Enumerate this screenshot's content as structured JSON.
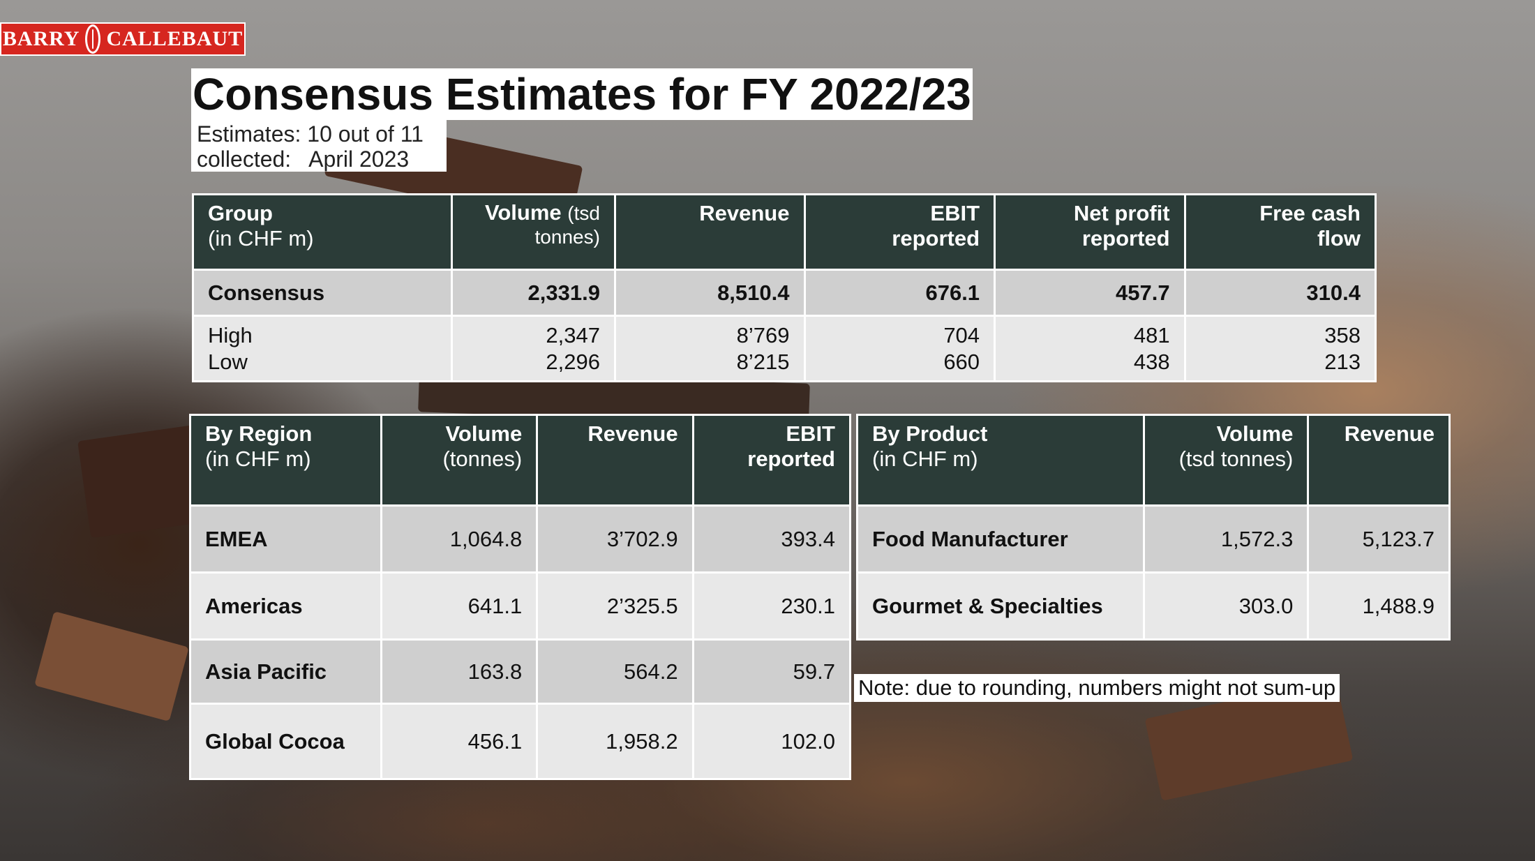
{
  "logo": {
    "left_text": "BARRY",
    "right_text": "CALLEBAUT",
    "color": "#d6261f"
  },
  "title": "Consensus Estimates for FY 2022/23",
  "subtitle": {
    "line1": "Estimates: 10 out of 11",
    "line2": "collected:   April 2023"
  },
  "group_table": {
    "headers": {
      "group": "Group",
      "group_sub": "(in CHF m)",
      "volume": "Volume",
      "volume_sub1": "(tsd",
      "volume_sub2": "tonnes)",
      "revenue": "Revenue",
      "ebit1": "EBIT",
      "ebit2": "reported",
      "net1": "Net profit",
      "net2": "reported",
      "fcf1": "Free cash",
      "fcf2": "flow"
    },
    "consensus": {
      "label": "Consensus",
      "volume": "2,331.9",
      "revenue": "8,510.4",
      "ebit": "676.1",
      "net": "457.7",
      "fcf": "310.4"
    },
    "high": {
      "label": "High",
      "volume": "2,347",
      "revenue": "8’769",
      "ebit": "704",
      "net": "481",
      "fcf": "358"
    },
    "low": {
      "label": "Low",
      "volume": "2,296",
      "revenue": "8’215",
      "ebit": "660",
      "net": "438",
      "fcf": "213"
    }
  },
  "region_table": {
    "headers": {
      "region": "By Region",
      "region_sub": "(in CHF m)",
      "volume": "Volume",
      "volume_sub": "(tonnes)",
      "revenue": "Revenue",
      "ebit1": "EBIT",
      "ebit2": "reported"
    },
    "rows": [
      {
        "label": "EMEA",
        "volume": "1,064.8",
        "revenue": "3’702.9",
        "ebit": "393.4"
      },
      {
        "label": "Americas",
        "volume": "641.1",
        "revenue": "2’325.5",
        "ebit": "230.1"
      },
      {
        "label": "Asia Pacific",
        "volume": "163.8",
        "revenue": "564.2",
        "ebit": "59.7"
      },
      {
        "label": "Global Cocoa",
        "volume": "456.1",
        "revenue": "1,958.2",
        "ebit": "102.0"
      }
    ]
  },
  "product_table": {
    "headers": {
      "product": "By Product",
      "product_sub": "(in CHF m)",
      "volume": "Volume",
      "volume_sub": "(tsd tonnes)",
      "revenue": "Revenue"
    },
    "rows": [
      {
        "label": "Food Manufacturer",
        "volume": "1,572.3",
        "revenue": "5,123.7"
      },
      {
        "label": "Gourmet & Specialties",
        "volume": "303.0",
        "revenue": "1,488.9"
      }
    ]
  },
  "note": "Note: due to rounding, numbers might not sum-up",
  "colors": {
    "header_bg": "#2b3c38",
    "row_dark": "#cfcfcf",
    "row_light": "#e8e8e8"
  }
}
